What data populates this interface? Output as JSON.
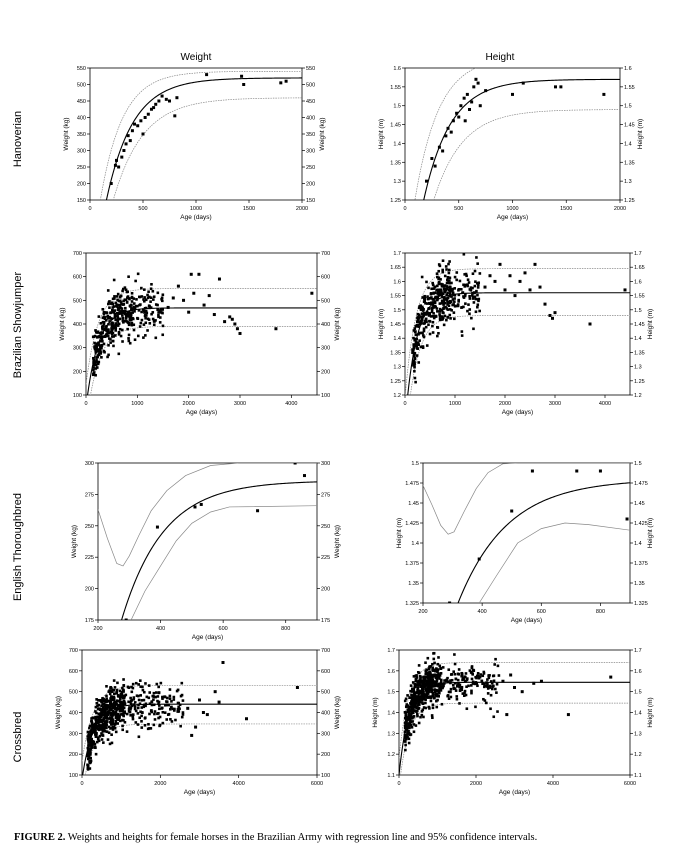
{
  "column_titles": {
    "weight": "Weight",
    "height": "Height"
  },
  "row_labels": [
    "Hanoverian",
    "Brazilian Showjumper",
    "English Thoroughbred",
    "Crossbred"
  ],
  "caption": {
    "label": "FIGURE 2.",
    "text": "Weights and heights for female horses in the Brazilian Army with regression line and 95% confidence intervals."
  },
  "colors": {
    "axis": "#000000",
    "fit": "#000000",
    "ci": "#888888",
    "points": "#000000"
  },
  "chart_data": [
    {
      "id": "hanoverian-weight",
      "type": "scatter",
      "xlabel": "Age (days)",
      "ylabel": "Weight (kg)",
      "ylabel_right": "Weight (kg)",
      "xlim": [
        0,
        2000
      ],
      "ylim": [
        150,
        550
      ],
      "xticks": [
        0,
        500,
        1000,
        1500,
        2000
      ],
      "xtick_labels": [
        "0",
        "500",
        "1000",
        "1500",
        "2000"
      ],
      "yticks": [
        150,
        200,
        250,
        300,
        350,
        400,
        450,
        500,
        550
      ],
      "ytick_labels": [
        "150",
        "200",
        "250",
        "300",
        "350",
        "400",
        "450",
        "500",
        "550"
      ],
      "fit": {
        "A": 520,
        "y0": 0,
        "x0": 70,
        "k": 0.004
      },
      "ci": {
        "upper": {
          "A": 540,
          "y0": 0,
          "x0": 30,
          "k": 0.0048
        },
        "lower": {
          "A": 460,
          "y0": 0,
          "x0": 110,
          "k": 0.0036
        }
      },
      "points": [
        [
          200,
          200
        ],
        [
          240,
          255
        ],
        [
          250,
          270
        ],
        [
          270,
          250
        ],
        [
          300,
          280
        ],
        [
          320,
          300
        ],
        [
          340,
          320
        ],
        [
          360,
          345
        ],
        [
          380,
          330
        ],
        [
          400,
          360
        ],
        [
          420,
          380
        ],
        [
          450,
          375
        ],
        [
          480,
          390
        ],
        [
          500,
          350
        ],
        [
          520,
          400
        ],
        [
          550,
          410
        ],
        [
          580,
          425
        ],
        [
          600,
          430
        ],
        [
          620,
          440
        ],
        [
          650,
          450
        ],
        [
          680,
          465
        ],
        [
          720,
          455
        ],
        [
          750,
          450
        ],
        [
          800,
          405
        ],
        [
          820,
          460
        ],
        [
          1100,
          530
        ],
        [
          1430,
          525
        ],
        [
          1450,
          500
        ],
        [
          1800,
          505
        ],
        [
          1850,
          510
        ]
      ]
    },
    {
      "id": "hanoverian-height",
      "type": "scatter",
      "xlabel": "Age (days)",
      "ylabel": "Height (m)",
      "ylabel_right": "Height (m)",
      "xlim": [
        0,
        2000
      ],
      "ylim": [
        1.25,
        1.6
      ],
      "xticks": [
        0,
        500,
        1000,
        1500,
        2000
      ],
      "xtick_labels": [
        "0",
        "500",
        "1000",
        "1500",
        "2000"
      ],
      "yticks": [
        1.25,
        1.3,
        1.35,
        1.4,
        1.45,
        1.5,
        1.55,
        1.6
      ],
      "ytick_labels": [
        "1.25",
        "1.3",
        "1.35",
        "1.4",
        "1.45",
        "1.5",
        "1.55",
        "1.6"
      ],
      "fit": {
        "A": 1.57,
        "y0": 1.0,
        "x0": 30,
        "k": 0.004
      },
      "ci": {
        "upper": {
          "A": 1.63,
          "y0": 1.0,
          "x0": -20,
          "k": 0.0045
        },
        "lower": {
          "A": 1.49,
          "y0": 1.0,
          "x0": 80,
          "k": 0.0038
        }
      },
      "points": [
        [
          200,
          1.3
        ],
        [
          250,
          1.36
        ],
        [
          280,
          1.34
        ],
        [
          320,
          1.39
        ],
        [
          350,
          1.38
        ],
        [
          380,
          1.42
        ],
        [
          400,
          1.44
        ],
        [
          430,
          1.43
        ],
        [
          450,
          1.46
        ],
        [
          480,
          1.48
        ],
        [
          500,
          1.47
        ],
        [
          520,
          1.5
        ],
        [
          550,
          1.52
        ],
        [
          560,
          1.46
        ],
        [
          580,
          1.53
        ],
        [
          600,
          1.49
        ],
        [
          620,
          1.51
        ],
        [
          640,
          1.55
        ],
        [
          660,
          1.57
        ],
        [
          680,
          1.56
        ],
        [
          700,
          1.5
        ],
        [
          750,
          1.54
        ],
        [
          1000,
          1.53
        ],
        [
          1100,
          1.56
        ],
        [
          1400,
          1.55
        ],
        [
          1450,
          1.55
        ],
        [
          1850,
          1.53
        ]
      ]
    },
    {
      "id": "showjumper-weight",
      "type": "scatter",
      "xlabel": "Age (days)",
      "ylabel": "Weight (kg)",
      "ylabel_right": "Weight (kg)",
      "xlim": [
        0,
        4500
      ],
      "ylim": [
        100,
        700
      ],
      "xticks": [
        0,
        1000,
        2000,
        3000,
        4000
      ],
      "xtick_labels": [
        "0",
        "1000",
        "2000",
        "3000",
        "4000"
      ],
      "yticks": [
        100,
        200,
        300,
        400,
        500,
        600,
        700
      ],
      "ytick_labels": [
        "100",
        "200",
        "300",
        "400",
        "500",
        "600",
        "700"
      ],
      "fit": {
        "A": 468,
        "y0": 50,
        "x0": 0,
        "k": 0.0042
      },
      "ci": {
        "upper": {
          "A": 550,
          "y0": 50,
          "x0": -50,
          "k": 0.0042
        },
        "lower": {
          "A": 390,
          "y0": 50,
          "x0": 50,
          "k": 0.0042
        }
      },
      "cloud": {
        "n": 420,
        "xmin": 140,
        "xmax": 1500,
        "spread": 55,
        "dense_until": 900,
        "seed": 11
      },
      "points": [
        [
          1600,
          470
        ],
        [
          1700,
          510
        ],
        [
          1800,
          560
        ],
        [
          1900,
          500
        ],
        [
          2000,
          450
        ],
        [
          2050,
          610
        ],
        [
          2100,
          530
        ],
        [
          2200,
          610
        ],
        [
          2300,
          480
        ],
        [
          2400,
          520
        ],
        [
          2500,
          440
        ],
        [
          2600,
          590
        ],
        [
          2700,
          410
        ],
        [
          2800,
          430
        ],
        [
          2850,
          420
        ],
        [
          2900,
          400
        ],
        [
          2950,
          380
        ],
        [
          3000,
          360
        ],
        [
          3700,
          380
        ],
        [
          4400,
          530
        ]
      ]
    },
    {
      "id": "showjumper-height",
      "type": "scatter",
      "xlabel": "Age (days)",
      "ylabel": "Height (m)",
      "ylabel_right": "Height (m)",
      "xlim": [
        0,
        4500
      ],
      "ylim": [
        1.2,
        1.7
      ],
      "xticks": [
        0,
        1000,
        2000,
        3000,
        4000
      ],
      "xtick_labels": [
        "0",
        "1000",
        "2000",
        "3000",
        "4000"
      ],
      "yticks": [
        1.2,
        1.25,
        1.3,
        1.35,
        1.4,
        1.45,
        1.5,
        1.55,
        1.6,
        1.65,
        1.7
      ],
      "ytick_labels": [
        "1.2",
        "1.25",
        "1.3",
        "1.35",
        "1.4",
        "1.45",
        "1.5",
        "1.55",
        "1.6",
        "1.65",
        "1.7"
      ],
      "fit": {
        "A": 1.56,
        "y0": 1.1,
        "x0": 0,
        "k": 0.0045
      },
      "ci": {
        "upper": {
          "A": 1.645,
          "y0": 1.1,
          "x0": -40,
          "k": 0.0045
        },
        "lower": {
          "A": 1.48,
          "y0": 1.1,
          "x0": 40,
          "k": 0.0045
        }
      },
      "cloud": {
        "n": 420,
        "xmin": 150,
        "xmax": 1500,
        "spread": 0.05,
        "dense_until": 900,
        "seed": 23
      },
      "points": [
        [
          1600,
          1.58
        ],
        [
          1700,
          1.62
        ],
        [
          1800,
          1.6
        ],
        [
          1900,
          1.66
        ],
        [
          2000,
          1.57
        ],
        [
          2100,
          1.62
        ],
        [
          2200,
          1.55
        ],
        [
          2300,
          1.6
        ],
        [
          2400,
          1.63
        ],
        [
          2500,
          1.57
        ],
        [
          2600,
          1.66
        ],
        [
          2700,
          1.58
        ],
        [
          2800,
          1.52
        ],
        [
          2900,
          1.48
        ],
        [
          2950,
          1.47
        ],
        [
          3000,
          1.49
        ],
        [
          3700,
          1.45
        ],
        [
          4400,
          1.57
        ]
      ]
    },
    {
      "id": "thoroughbred-weight",
      "type": "scatter",
      "xlabel": "Age (days)",
      "ylabel": "Weight (kg)",
      "ylabel_right": "Weight (kg)",
      "xlim": [
        200,
        900
      ],
      "ylim": [
        175,
        300
      ],
      "xticks": [
        200,
        400,
        600,
        800
      ],
      "xtick_labels": [
        "200",
        "400",
        "600",
        "800"
      ],
      "yticks": [
        175,
        200,
        225,
        250,
        275,
        300
      ],
      "ytick_labels": [
        "175",
        "200",
        "225",
        "250",
        "275",
        "300"
      ],
      "fit": {
        "A": 286,
        "y0": 130,
        "x0": 230,
        "k": 0.0075
      },
      "ci_upper_pts": [
        [
          200,
          263
        ],
        [
          230,
          240
        ],
        [
          260,
          220
        ],
        [
          280,
          218
        ],
        [
          300,
          226
        ],
        [
          330,
          242
        ],
        [
          370,
          262
        ],
        [
          420,
          278
        ],
        [
          480,
          290
        ],
        [
          560,
          298
        ],
        [
          650,
          300
        ],
        [
          900,
          300
        ]
      ],
      "ci_lower_pts": [
        [
          300,
          172
        ],
        [
          350,
          198
        ],
        [
          400,
          218
        ],
        [
          450,
          238
        ],
        [
          500,
          252
        ],
        [
          560,
          261
        ],
        [
          620,
          265
        ],
        [
          900,
          266
        ]
      ],
      "points": [
        [
          290,
          175
        ],
        [
          390,
          249
        ],
        [
          510,
          265
        ],
        [
          530,
          267
        ],
        [
          710,
          262
        ],
        [
          830,
          300
        ],
        [
          860,
          290
        ]
      ]
    },
    {
      "id": "thoroughbred-height",
      "type": "scatter",
      "xlabel": "Age (days)",
      "ylabel": "Height (m)",
      "ylabel_right": "Height (m)",
      "xlim": [
        200,
        900
      ],
      "ylim": [
        1.325,
        1.5
      ],
      "xticks": [
        200,
        400,
        600,
        800
      ],
      "xtick_labels": [
        "200",
        "400",
        "600",
        "800"
      ],
      "yticks": [
        1.325,
        1.35,
        1.375,
        1.4,
        1.425,
        1.45,
        1.475,
        1.5
      ],
      "ytick_labels": [
        "1.325",
        "1.35",
        "1.375",
        "1.4",
        "1.425",
        "1.45",
        "1.475",
        "1.5"
      ],
      "fit": {
        "A": 1.48,
        "y0": 1.2,
        "x0": 220,
        "k": 0.006
      },
      "ci_upper_pts": [
        [
          200,
          1.472
        ],
        [
          230,
          1.448
        ],
        [
          260,
          1.422
        ],
        [
          285,
          1.411
        ],
        [
          305,
          1.414
        ],
        [
          340,
          1.44
        ],
        [
          380,
          1.468
        ],
        [
          420,
          1.488
        ],
        [
          470,
          1.499
        ],
        [
          520,
          1.5
        ],
        [
          900,
          1.5
        ]
      ],
      "ci_lower_pts": [
        [
          390,
          1.325
        ],
        [
          450,
          1.36
        ],
        [
          520,
          1.4
        ],
        [
          600,
          1.418
        ],
        [
          680,
          1.425
        ],
        [
          760,
          1.423
        ],
        [
          900,
          1.416
        ]
      ],
      "points": [
        [
          290,
          1.325
        ],
        [
          390,
          1.38
        ],
        [
          500,
          1.44
        ],
        [
          570,
          1.49
        ],
        [
          720,
          1.49
        ],
        [
          800,
          1.49
        ],
        [
          890,
          1.43
        ]
      ]
    },
    {
      "id": "crossbred-weight",
      "type": "scatter",
      "xlabel": "Age (days)",
      "ylabel": "Weight (kg)",
      "ylabel_right": "Weight (kg)",
      "xlim": [
        0,
        6000
      ],
      "ylim": [
        100,
        700
      ],
      "xticks": [
        0,
        2000,
        4000,
        6000
      ],
      "xtick_labels": [
        "0",
        "2000",
        "4000",
        "6000"
      ],
      "yticks": [
        100,
        200,
        300,
        400,
        500,
        600,
        700
      ],
      "ytick_labels": [
        "100",
        "200",
        "300",
        "400",
        "500",
        "600",
        "700"
      ],
      "fit": {
        "A": 440,
        "y0": 80,
        "x0": 0,
        "k": 0.0035
      },
      "ci": {
        "upper": {
          "A": 530,
          "y0": 80,
          "x0": -60,
          "k": 0.0035
        },
        "lower": {
          "A": 345,
          "y0": 80,
          "x0": 60,
          "k": 0.0035
        }
      },
      "cloud": {
        "n": 650,
        "xmin": 140,
        "xmax": 2600,
        "spread": 55,
        "dense_until": 1100,
        "seed": 37
      },
      "points": [
        [
          2700,
          420
        ],
        [
          2800,
          290
        ],
        [
          2900,
          330
        ],
        [
          3000,
          460
        ],
        [
          3100,
          400
        ],
        [
          3200,
          390
        ],
        [
          3400,
          500
        ],
        [
          3500,
          450
        ],
        [
          3600,
          640
        ],
        [
          4200,
          370
        ],
        [
          5500,
          520
        ]
      ]
    },
    {
      "id": "crossbred-height",
      "type": "scatter",
      "xlabel": "Age (days)",
      "ylabel": "Height (m)",
      "ylabel_right": "Height (m)",
      "xlim": [
        0,
        6000
      ],
      "ylim": [
        1.1,
        1.7
      ],
      "xticks": [
        0,
        2000,
        4000,
        6000
      ],
      "xtick_labels": [
        "0",
        "2000",
        "4000",
        "6000"
      ],
      "yticks": [
        1.1,
        1.2,
        1.3,
        1.4,
        1.5,
        1.6,
        1.7
      ],
      "ytick_labels": [
        "1.1",
        "1.2",
        "1.3",
        "1.4",
        "1.5",
        "1.6",
        "1.7"
      ],
      "fit": {
        "A": 1.545,
        "y0": 1.1,
        "x0": 0,
        "k": 0.004
      },
      "ci": {
        "upper": {
          "A": 1.64,
          "y0": 1.1,
          "x0": -40,
          "k": 0.004
        },
        "lower": {
          "A": 1.445,
          "y0": 1.1,
          "x0": 40,
          "k": 0.004
        }
      },
      "cloud": {
        "n": 650,
        "xmin": 140,
        "xmax": 2600,
        "spread": 0.055,
        "dense_until": 1100,
        "seed": 53
      },
      "points": [
        [
          2700,
          1.55
        ],
        [
          2800,
          1.39
        ],
        [
          2900,
          1.58
        ],
        [
          3000,
          1.52
        ],
        [
          3200,
          1.5
        ],
        [
          3500,
          1.54
        ],
        [
          3700,
          1.55
        ],
        [
          4400,
          1.39
        ],
        [
          5500,
          1.57
        ]
      ]
    }
  ]
}
